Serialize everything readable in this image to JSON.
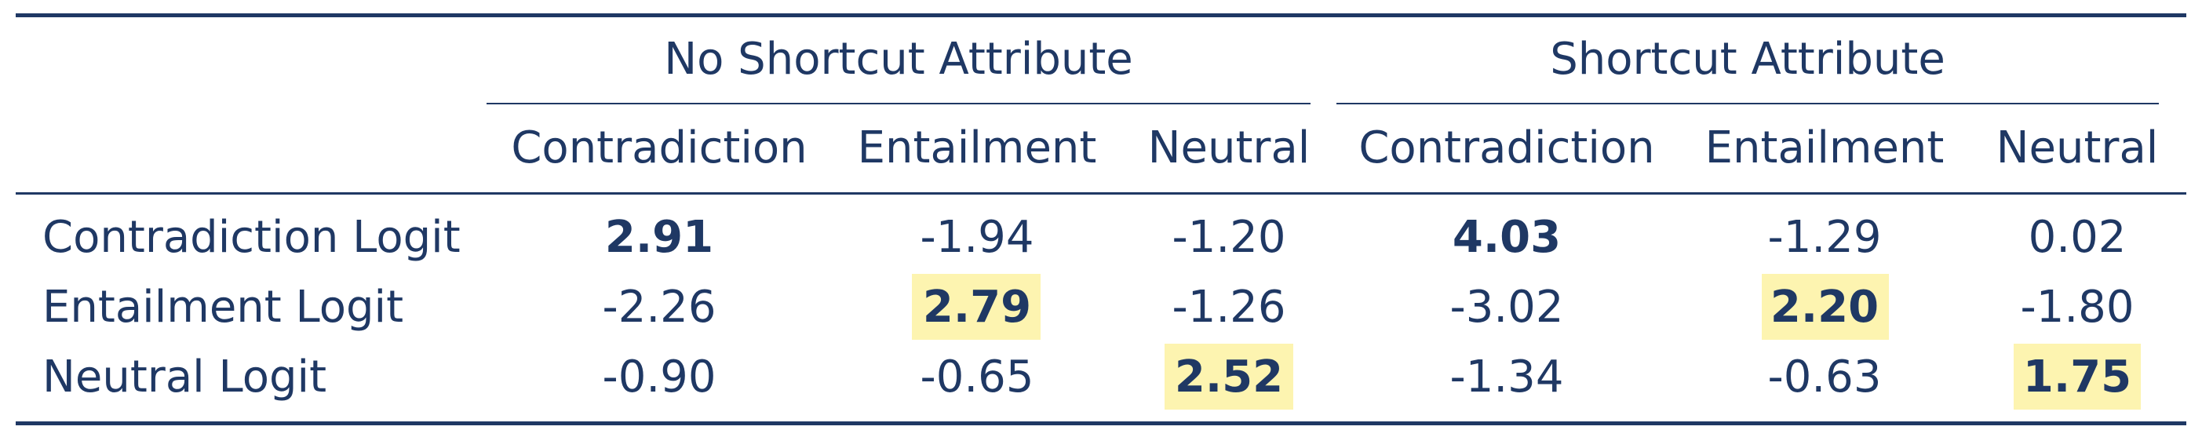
{
  "groups": [
    {
      "label": "No Shortcut Attribute"
    },
    {
      "label": "Shortcut Attribute"
    }
  ],
  "columns": [
    "Contradiction",
    "Entailment",
    "Neutral",
    "Contradiction",
    "Entailment",
    "Neutral"
  ],
  "rows": [
    {
      "label": "Contradiction Logit",
      "values": [
        "2.91",
        "-1.94",
        "-1.20",
        "4.03",
        "-1.29",
        "0.02"
      ],
      "bold": [
        true,
        false,
        false,
        true,
        false,
        false
      ],
      "highlight": [
        false,
        false,
        false,
        false,
        false,
        false
      ]
    },
    {
      "label": "Entailment Logit",
      "values": [
        "-2.26",
        "2.79",
        "-1.26",
        "-3.02",
        "2.20",
        "-1.80"
      ],
      "bold": [
        false,
        true,
        false,
        false,
        true,
        false
      ],
      "highlight": [
        false,
        true,
        false,
        false,
        true,
        false
      ]
    },
    {
      "label": "Neutral Logit",
      "values": [
        "-0.90",
        "-0.65",
        "2.52",
        "-1.34",
        "-0.63",
        "1.75"
      ],
      "bold": [
        false,
        false,
        true,
        false,
        false,
        true
      ],
      "highlight": [
        false,
        false,
        true,
        false,
        false,
        true
      ]
    }
  ],
  "colors": {
    "text": "#1f3864",
    "highlight": "#fdf4b0"
  }
}
